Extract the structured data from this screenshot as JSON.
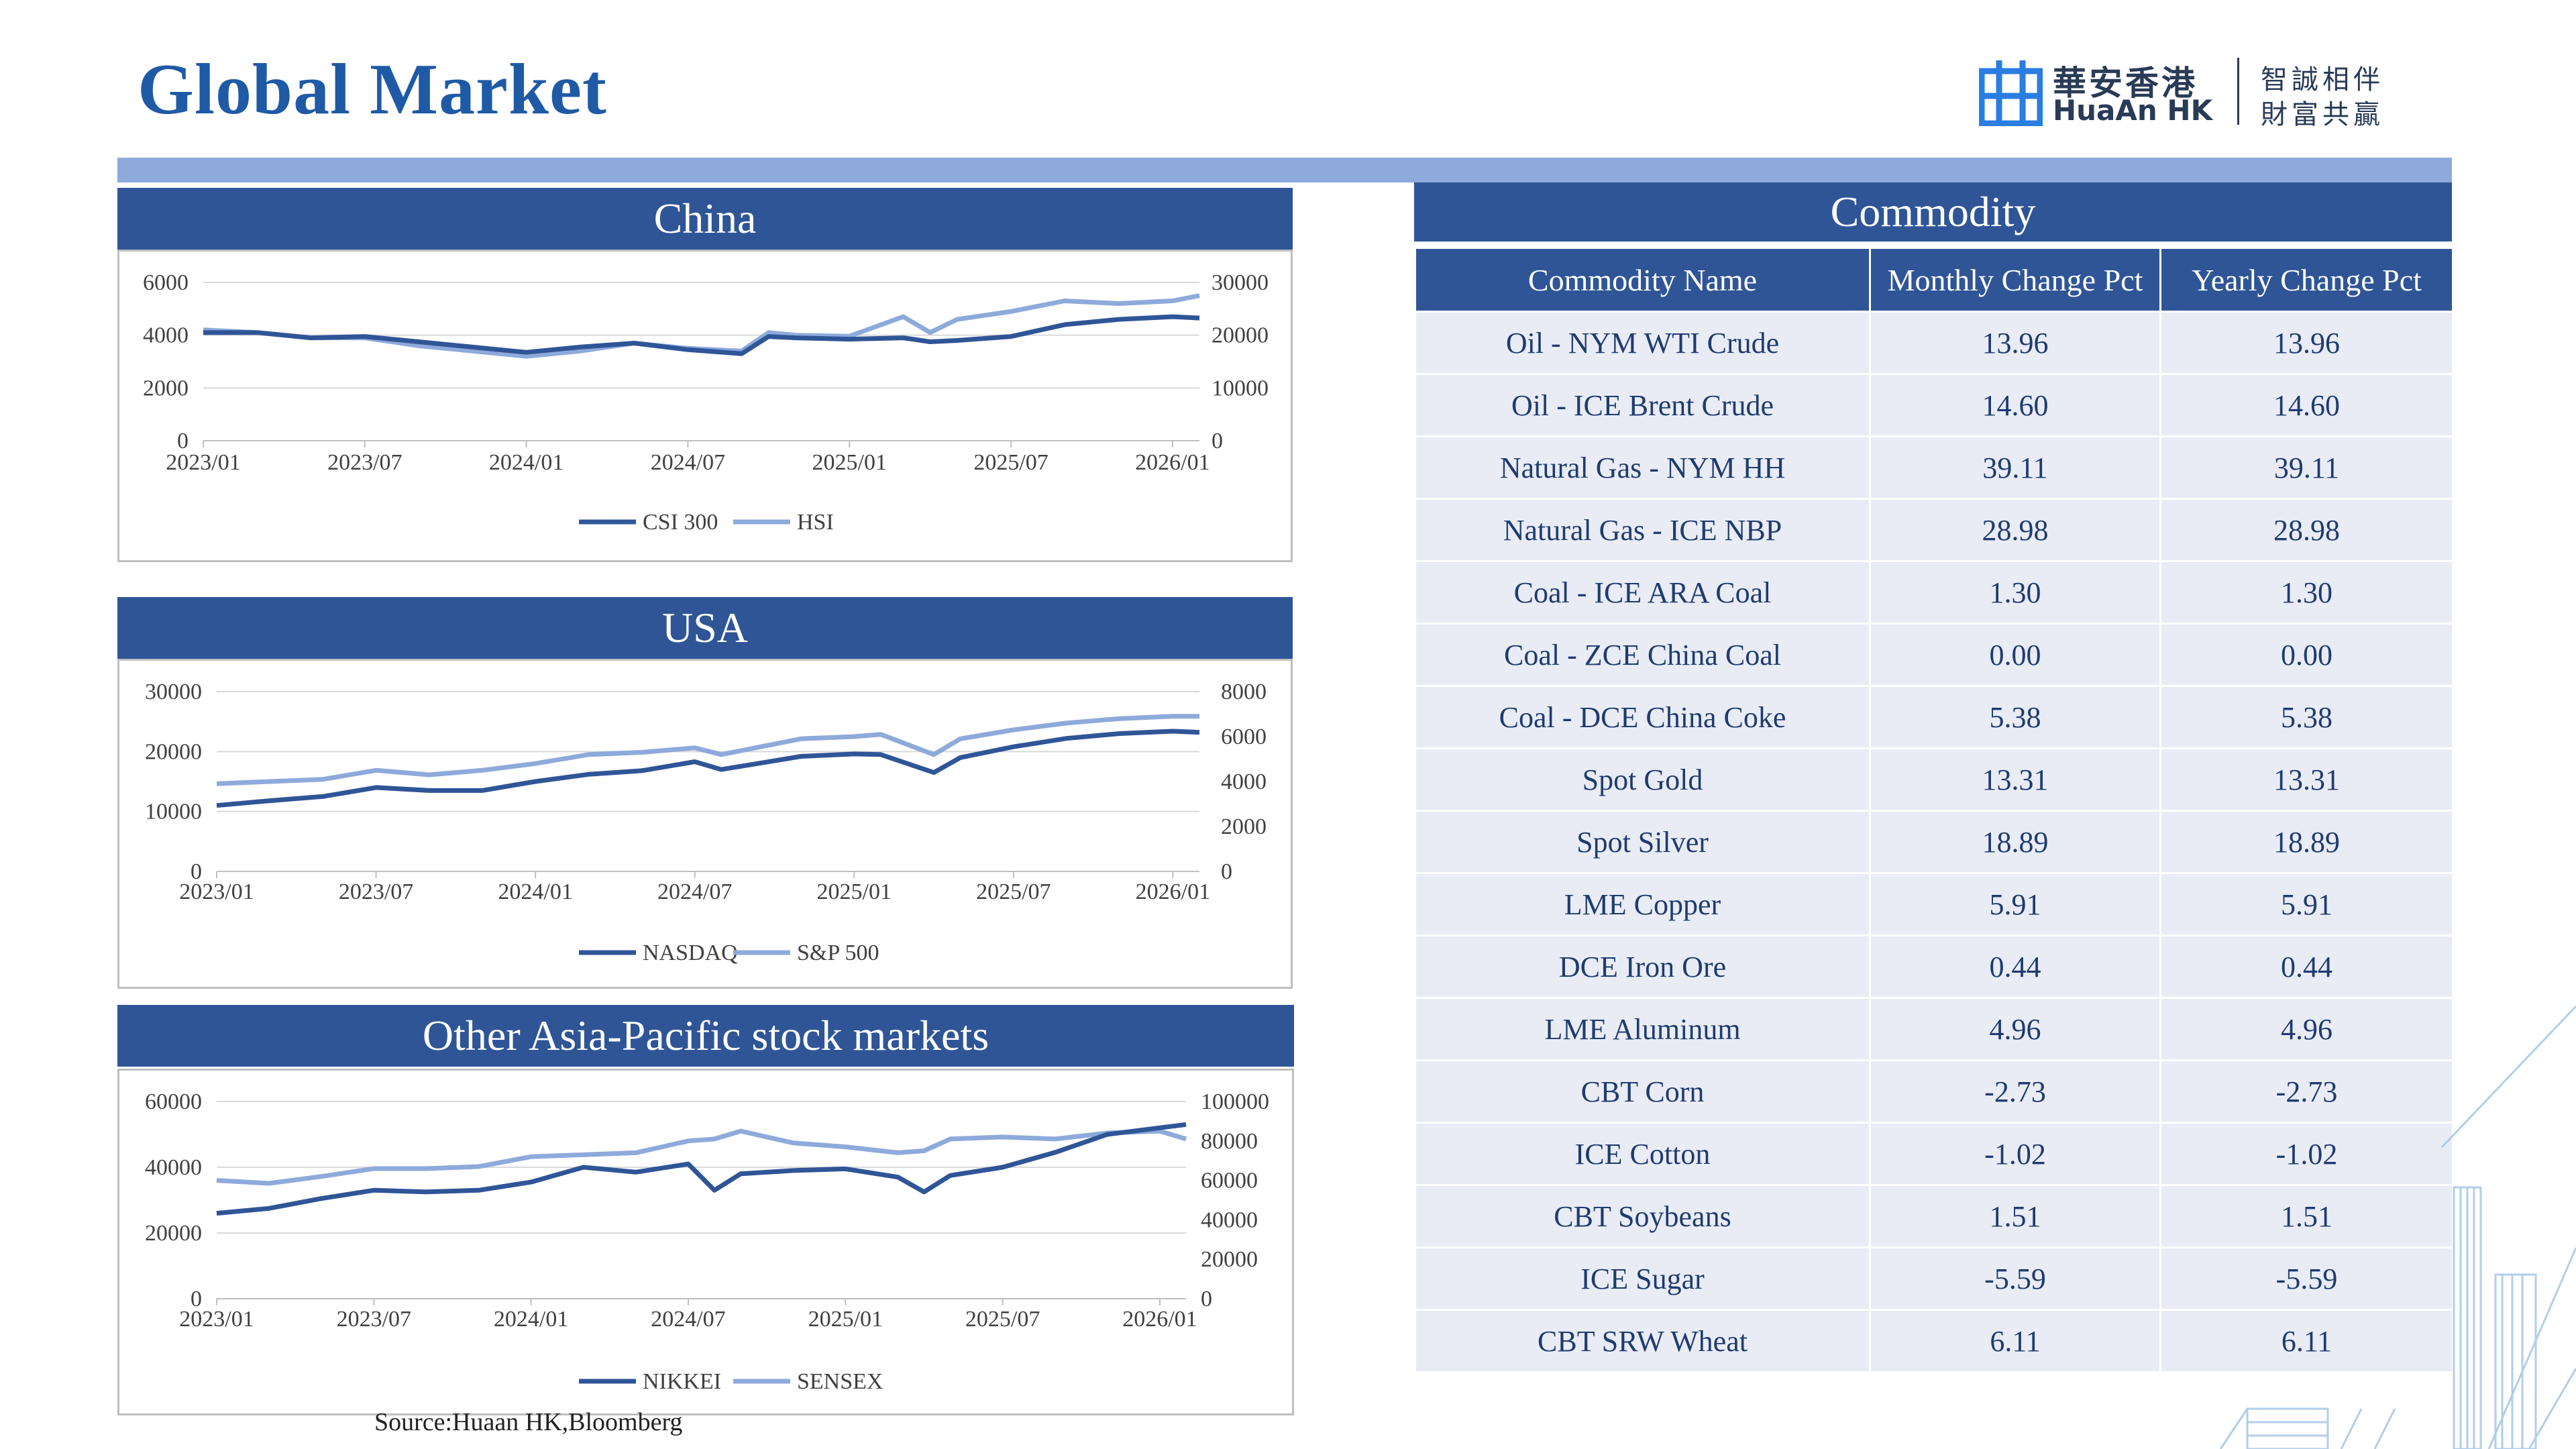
{
  "title": "Global Market",
  "logo": {
    "cn": "華安香港",
    "en": "HuaAn HK",
    "slogan1": "智誠相伴",
    "slogan2": "財富共贏"
  },
  "panels": {
    "china": "China",
    "usa": "USA",
    "asia": "Other Asia-Pacific stock markets",
    "commodity": "Commodity"
  },
  "source": "Source:Huaan HK,Bloomberg",
  "colors": {
    "header": "#2f5597",
    "band": "#8eaadb",
    "series_dark": "#2f5597",
    "series_light": "#8eaadb",
    "row_bg": "#e9ecf5"
  },
  "commodity_table": {
    "headers": [
      "Commodity Name",
      "Monthly Change Pct",
      "Yearly Change Pct"
    ],
    "rows": [
      [
        "Oil - NYM WTI Crude",
        "13.96",
        "13.96"
      ],
      [
        "Oil - ICE Brent Crude",
        "14.60",
        "14.60"
      ],
      [
        "Natural Gas - NYM HH",
        "39.11",
        "39.11"
      ],
      [
        "Natural Gas - ICE NBP",
        "28.98",
        "28.98"
      ],
      [
        "Coal - ICE ARA Coal",
        "1.30",
        "1.30"
      ],
      [
        "Coal - ZCE China Coal",
        "0.00",
        "0.00"
      ],
      [
        "Coal - DCE China Coke",
        "5.38",
        "5.38"
      ],
      [
        "Spot Gold",
        "13.31",
        "13.31"
      ],
      [
        "Spot Silver",
        "18.89",
        "18.89"
      ],
      [
        "LME Copper",
        "5.91",
        "5.91"
      ],
      [
        "DCE Iron Ore",
        "0.44",
        "0.44"
      ],
      [
        "LME Aluminum",
        "4.96",
        "4.96"
      ],
      [
        "CBT Corn",
        "-2.73",
        "-2.73"
      ],
      [
        "ICE Cotton",
        "-1.02",
        "-1.02"
      ],
      [
        "CBT Soybeans",
        "1.51",
        "1.51"
      ],
      [
        "ICE Sugar",
        "-5.59",
        "-5.59"
      ],
      [
        "CBT SRW Wheat",
        "6.11",
        "6.11"
      ]
    ]
  },
  "chart_data": [
    {
      "id": "china",
      "type": "line",
      "x_ticks": [
        "2023/01",
        "2023/07",
        "2024/01",
        "2024/07",
        "2025/01",
        "2025/07",
        "2026/01"
      ],
      "x": [
        "2023/01",
        "2023/03",
        "2023/05",
        "2023/07",
        "2023/09",
        "2023/11",
        "2024/01",
        "2024/03",
        "2024/05",
        "2024/07",
        "2024/09",
        "2024/10",
        "2024/11",
        "2025/01",
        "2025/03",
        "2025/04",
        "2025/05",
        "2025/07",
        "2025/09",
        "2025/11",
        "2026/01",
        "2026/02"
      ],
      "y_left": {
        "ticks": [
          0,
          2000,
          4000,
          6000
        ],
        "range": [
          0,
          6000
        ]
      },
      "y_right": {
        "ticks": [
          0,
          10000,
          20000,
          30000
        ],
        "range": [
          0,
          30000
        ]
      },
      "series": [
        {
          "name": "CSI 300",
          "axis": "left",
          "values": [
            4100,
            4100,
            3900,
            3950,
            3750,
            3550,
            3350,
            3550,
            3700,
            3450,
            3300,
            3950,
            3900,
            3850,
            3900,
            3750,
            3800,
            3950,
            4400,
            4600,
            4700,
            4650
          ]
        },
        {
          "name": "HSI",
          "axis": "right",
          "values": [
            21000,
            20500,
            19500,
            19500,
            18000,
            17000,
            16000,
            17000,
            18500,
            17500,
            17000,
            20500,
            20000,
            19800,
            23500,
            20500,
            23000,
            24500,
            26500,
            26000,
            26500,
            27500
          ]
        }
      ]
    },
    {
      "id": "usa",
      "type": "line",
      "x_ticks": [
        "2023/01",
        "2023/07",
        "2024/01",
        "2024/07",
        "2025/01",
        "2025/07",
        "2026/01"
      ],
      "x": [
        "2023/01",
        "2023/03",
        "2023/05",
        "2023/07",
        "2023/09",
        "2023/11",
        "2024/01",
        "2024/03",
        "2024/05",
        "2024/07",
        "2024/08",
        "2024/11",
        "2025/01",
        "2025/02",
        "2025/04",
        "2025/05",
        "2025/07",
        "2025/09",
        "2025/11",
        "2026/01",
        "2026/02"
      ],
      "y_left": {
        "ticks": [
          0,
          10000,
          20000,
          30000
        ],
        "range": [
          0,
          30000
        ]
      },
      "y_right": {
        "ticks": [
          0,
          2000,
          4000,
          6000,
          8000
        ],
        "range": [
          0,
          8000
        ]
      },
      "series": [
        {
          "name": "NASDAQ",
          "axis": "left",
          "values": [
            11000,
            11800,
            12500,
            14000,
            13500,
            13500,
            15000,
            16200,
            16800,
            18300,
            17000,
            19200,
            19600,
            19500,
            16500,
            19000,
            20800,
            22200,
            23000,
            23400,
            23200
          ]
        },
        {
          "name": "S&P 500",
          "axis": "right",
          "values": [
            3900,
            4000,
            4100,
            4500,
            4300,
            4500,
            4800,
            5200,
            5300,
            5500,
            5200,
            5900,
            6000,
            6100,
            5200,
            5900,
            6300,
            6600,
            6800,
            6900,
            6900
          ]
        }
      ]
    },
    {
      "id": "asia",
      "type": "line",
      "x_ticks": [
        "2023/01",
        "2023/07",
        "2024/01",
        "2024/07",
        "2025/01",
        "2025/07",
        "2026/01"
      ],
      "x": [
        "2023/01",
        "2023/03",
        "2023/05",
        "2023/07",
        "2023/09",
        "2023/11",
        "2024/01",
        "2024/03",
        "2024/05",
        "2024/07",
        "2024/08",
        "2024/09",
        "2024/11",
        "2025/01",
        "2025/03",
        "2025/04",
        "2025/05",
        "2025/07",
        "2025/09",
        "2025/11",
        "2026/01",
        "2026/02"
      ],
      "y_left": {
        "ticks": [
          0,
          20000,
          40000,
          60000
        ],
        "range": [
          0,
          60000
        ]
      },
      "y_right": {
        "ticks": [
          0,
          20000,
          40000,
          60000,
          80000,
          100000
        ],
        "range": [
          0,
          100000
        ]
      },
      "series": [
        {
          "name": "NIKKEI",
          "axis": "left",
          "values": [
            26000,
            27500,
            30500,
            33000,
            32500,
            33000,
            35500,
            40000,
            38500,
            41000,
            33000,
            38000,
            39000,
            39500,
            37000,
            32500,
            37500,
            40000,
            44500,
            50000,
            52000,
            53000
          ]
        },
        {
          "name": "SENSEX",
          "axis": "right",
          "values": [
            60000,
            58500,
            62000,
            66000,
            66000,
            67000,
            72000,
            73000,
            74000,
            80000,
            81000,
            85000,
            79000,
            77000,
            74000,
            75000,
            81000,
            82000,
            81000,
            84000,
            85000,
            81000
          ]
        }
      ]
    }
  ]
}
